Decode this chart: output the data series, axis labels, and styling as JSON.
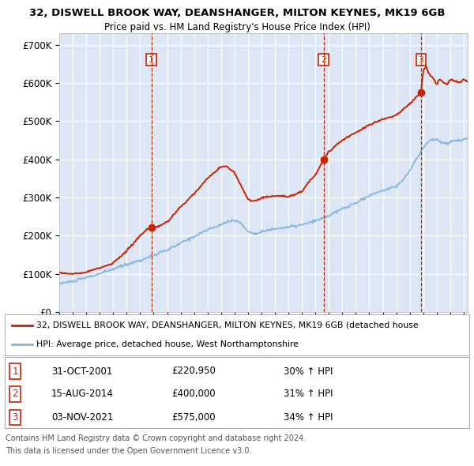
{
  "title1": "32, DISWELL BROOK WAY, DEANSHANGER, MILTON KEYNES, MK19 6GB",
  "title2": "Price paid vs. HM Land Registry's House Price Index (HPI)",
  "legend_line1": "32, DISWELL BROOK WAY, DEANSHANGER, MILTON KEYNES, MK19 6GB (detached house",
  "legend_line2": "HPI: Average price, detached house, West Northamptonshire",
  "footer1": "Contains HM Land Registry data © Crown copyright and database right 2024.",
  "footer2": "This data is licensed under the Open Government Licence v3.0.",
  "sales": [
    {
      "num": "1",
      "date": "31-OCT-2001",
      "price": "£220,950",
      "pct": "30% ↑ HPI",
      "year": 2001.83
    },
    {
      "num": "2",
      "date": "15-AUG-2014",
      "price": "£400,000",
      "pct": "31% ↑ HPI",
      "year": 2014.62
    },
    {
      "num": "3",
      "date": "03-NOV-2021",
      "price": "£575,000",
      "pct": "34% ↑ HPI",
      "year": 2021.84
    }
  ],
  "sale_values": [
    220950,
    400000,
    575000
  ],
  "ylim": [
    0,
    730000
  ],
  "yticks": [
    0,
    100000,
    200000,
    300000,
    400000,
    500000,
    600000,
    700000
  ],
  "ytick_labels": [
    "£0",
    "£100K",
    "£200K",
    "£300K",
    "£400K",
    "£500K",
    "£600K",
    "£700K"
  ],
  "bg_color": "#dce6f5",
  "grid_color": "#ffffff",
  "red_color": "#cc2200",
  "blue_color": "#88b8e0",
  "vline_color": "#cc2200",
  "box_color": "#cc2200",
  "xlim_left": 1995,
  "xlim_right": 2025.3
}
